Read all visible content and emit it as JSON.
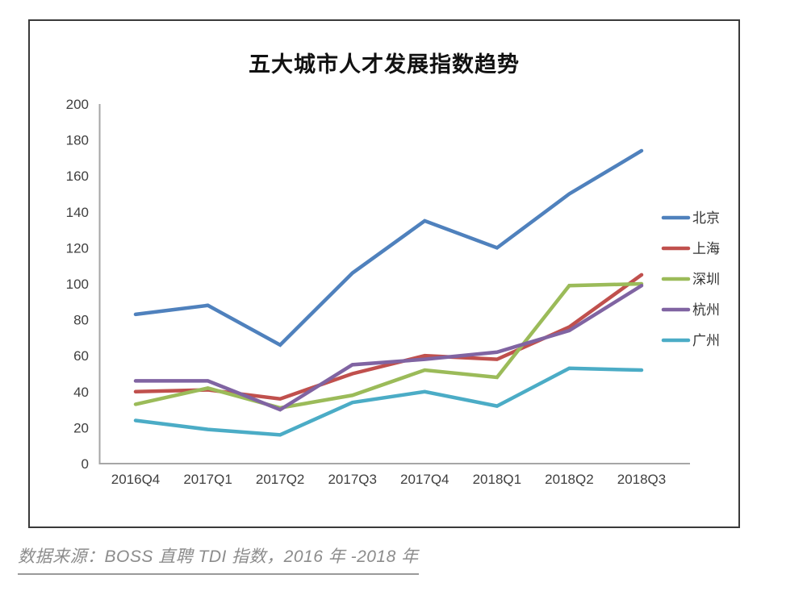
{
  "chart_data": {
    "type": "line",
    "title": "五大城市人才发展指数趋势",
    "categories": [
      "2016Q4",
      "2017Q1",
      "2017Q2",
      "2017Q3",
      "2017Q4",
      "2018Q1",
      "2018Q2",
      "2018Q3"
    ],
    "series": [
      {
        "name": "北京",
        "color": "#4F81BD",
        "values": [
          83,
          88,
          66,
          106,
          135,
          120,
          150,
          174
        ]
      },
      {
        "name": "上海",
        "color": "#C0504D",
        "values": [
          40,
          41,
          36,
          50,
          60,
          58,
          76,
          105
        ]
      },
      {
        "name": "深圳",
        "color": "#9BBB59",
        "values": [
          33,
          42,
          31,
          38,
          52,
          48,
          99,
          100
        ]
      },
      {
        "name": "杭州",
        "color": "#8064A2",
        "values": [
          46,
          46,
          30,
          55,
          58,
          62,
          74,
          99
        ]
      },
      {
        "name": "广州",
        "color": "#4BACC6",
        "values": [
          24,
          19,
          16,
          34,
          40,
          32,
          53,
          52
        ]
      }
    ],
    "xlabel": "",
    "ylabel": "",
    "ylim": [
      0,
      200
    ],
    "ytick_step": 20,
    "grid": false,
    "legend_position": "right",
    "axis_color": "#A6A6A6",
    "tick_label_color": "#3F3F3F",
    "legend_label_color": "#333333"
  },
  "caption": "数据来源：BOSS 直聘 TDI 指数，2016 年 -2018 年"
}
